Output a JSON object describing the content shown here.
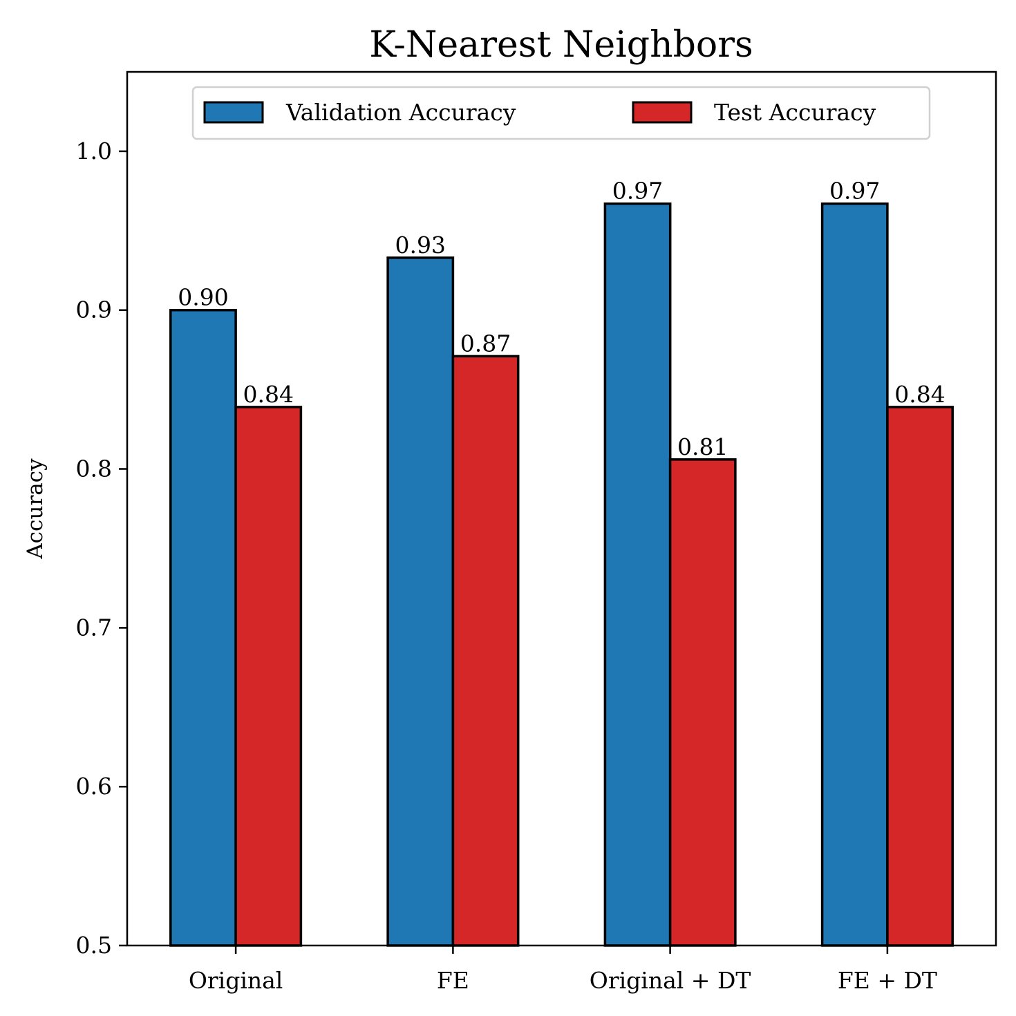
{
  "chart_data": {
    "type": "bar",
    "title": "K-Nearest Neighbors",
    "xlabel": "",
    "ylabel": "Accuracy",
    "categories": [
      "Original",
      "FE",
      "Original + DT",
      "FE + DT"
    ],
    "series": [
      {
        "name": "Validation Accuracy",
        "color": "#1f77b4",
        "values": [
          0.9,
          0.933,
          0.967,
          0.967
        ],
        "labels": [
          "0.90",
          "0.93",
          "0.97",
          "0.97"
        ]
      },
      {
        "name": "Test Accuracy",
        "color": "#d62728",
        "values": [
          0.839,
          0.871,
          0.806,
          0.839
        ],
        "labels": [
          "0.84",
          "0.87",
          "0.81",
          "0.84"
        ]
      }
    ],
    "ylim": [
      0.5,
      1.05
    ],
    "yticks": [
      0.5,
      0.6,
      0.7,
      0.8,
      0.9,
      1.0
    ],
    "ytick_labels": [
      "0.5",
      "0.6",
      "0.7",
      "0.8",
      "0.9",
      "1.0"
    ],
    "grid": false,
    "legend_position": "top-center"
  }
}
